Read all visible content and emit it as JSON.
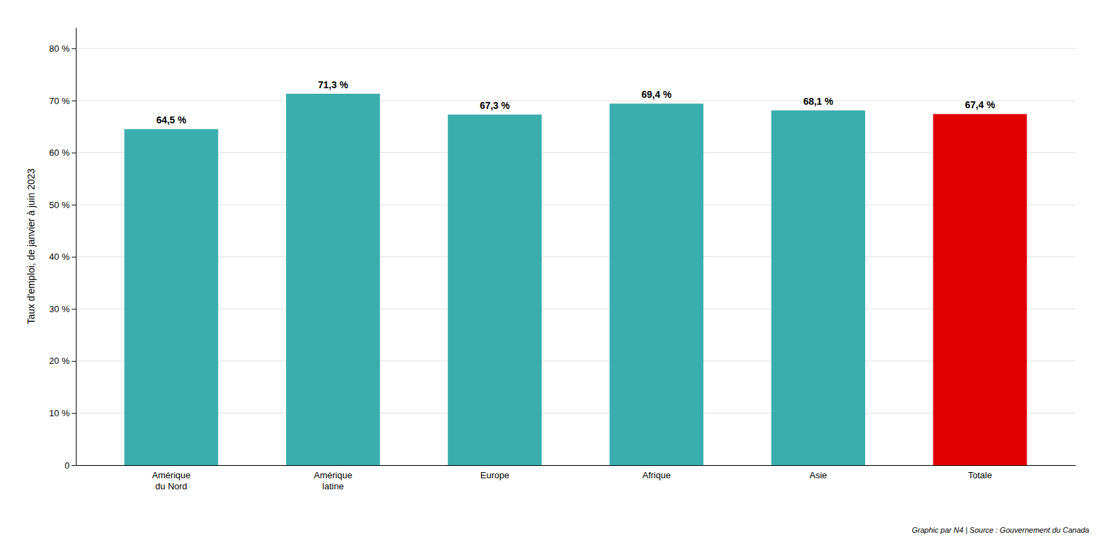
{
  "chart_data": {
    "type": "bar",
    "y_label": "Taux d'emploi, de janvier à juin 2023",
    "categories": [
      "Amérique\ndu Nord",
      "Amérique\nlatine",
      "Europe",
      "Afrique",
      "Asie",
      "Totale"
    ],
    "values": [
      64.5,
      71.3,
      67.3,
      69.4,
      68.1,
      67.4
    ],
    "value_labels": [
      "64,5 %",
      "71,3 %",
      "67,3 %",
      "69,4 %",
      "68,1 %",
      "67,4 %"
    ],
    "colors": [
      "#3AADAD",
      "#3AADAD",
      "#3AADAD",
      "#3AADAD",
      "#3AADAD",
      "#E00000"
    ],
    "ylim": [
      0,
      84
    ],
    "yticks": [
      0,
      {
        "value": 10,
        "label": "10 %"
      },
      {
        "value": 20,
        "label": "20 %"
      },
      {
        "value": 30,
        "label": "30 %"
      },
      {
        "value": 40,
        "label": "40 %"
      },
      {
        "value": 50,
        "label": "50 %"
      },
      {
        "value": 60,
        "label": "60 %"
      },
      {
        "value": 70,
        "label": "70 %"
      },
      {
        "value": 80,
        "label": "80 %"
      }
    ],
    "grid": true,
    "data_labels": true,
    "annotations": [
      "Graphic par N4 | Source : Gouvernement du Canada"
    ]
  }
}
